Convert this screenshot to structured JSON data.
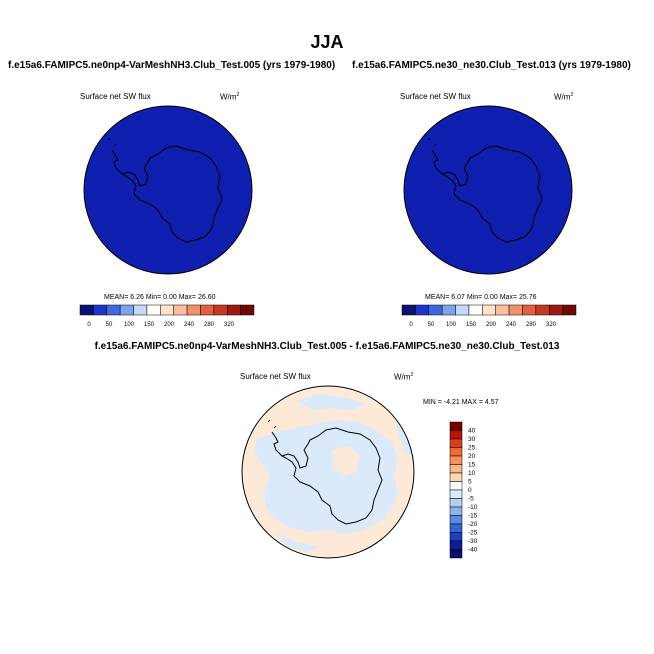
{
  "page": {
    "title": "JJA"
  },
  "panel_left": {
    "case_title": "f.e15a6.FAMIPC5.ne0np4-VarMeshNH3.Club_Test.005 (yrs 1979-1980)",
    "var_label": "Surface net SW flux",
    "units_base": "W/m",
    "units_exp": "2",
    "stats": "MEAN=   6.26  Min=   0.00  Max=  26.60"
  },
  "panel_right": {
    "case_title": "f.e15a6.FAMIPC5.ne30_ne30.Club_Test.013 (yrs 1979-1980)",
    "var_label": "Surface net SW flux",
    "units_base": "W/m",
    "units_exp": "2",
    "stats": "MEAN=   6.07  Min=   0.00  Max=  25.76"
  },
  "panel_diff": {
    "case_title": "f.e15a6.FAMIPC5.ne0np4-VarMeshNH3.Club_Test.005 - f.e15a6.FAMIPC5.ne30_ne30.Club_Test.013",
    "var_label": "Surface net SW flux",
    "units_base": "W/m",
    "units_exp": "2",
    "stats": "MIN =  -4.21  MAX =   4.57"
  },
  "chart_data": [
    {
      "type": "heatmap",
      "name": "left",
      "projection": "south-polar-stereographic",
      "field_color": "#0f1fb0",
      "colorbar_orientation": "horizontal",
      "colorbar_labels": [
        "0",
        "50",
        "100",
        "150",
        "200",
        "240",
        "280",
        "320"
      ],
      "colorbar_colors": [
        "#0a1370",
        "#1f34c8",
        "#3c68e0",
        "#7ba3ee",
        "#c4dafa",
        "#ffffff",
        "#ffe2cc",
        "#fbbd9b",
        "#f3906b",
        "#e2603f",
        "#c63822",
        "#9c1a0f",
        "#6e0a06"
      ]
    },
    {
      "type": "heatmap",
      "name": "right",
      "projection": "south-polar-stereographic",
      "field_color": "#0f1fb0",
      "colorbar_orientation": "horizontal",
      "colorbar_labels": [
        "0",
        "50",
        "100",
        "150",
        "200",
        "240",
        "280",
        "320"
      ],
      "colorbar_colors": [
        "#0a1370",
        "#1f34c8",
        "#3c68e0",
        "#7ba3ee",
        "#c4dafa",
        "#ffffff",
        "#ffe2cc",
        "#fbbd9b",
        "#f3906b",
        "#e2603f",
        "#c63822",
        "#9c1a0f",
        "#6e0a06"
      ]
    },
    {
      "type": "heatmap",
      "name": "difference",
      "projection": "south-polar-stereographic",
      "field_color": "#fde9d7",
      "alt_color": "#dbeafb",
      "colorbar_orientation": "vertical",
      "colorbar_labels": [
        "40",
        "30",
        "25",
        "20",
        "15",
        "10",
        "5",
        "0",
        "-5",
        "-10",
        "-15",
        "-20",
        "-25",
        "-30",
        "-40"
      ],
      "colorbar_colors": [
        "#7a0000",
        "#b8140a",
        "#e03b1a",
        "#f26a35",
        "#f78e5c",
        "#fbb58a",
        "#fdd4b6",
        "#ffffff",
        "#dbeafb",
        "#b4cff3",
        "#8cb3ee",
        "#5b88e4",
        "#3463d6",
        "#1f3fc0",
        "#0e1f99",
        "#06106b"
      ]
    }
  ]
}
